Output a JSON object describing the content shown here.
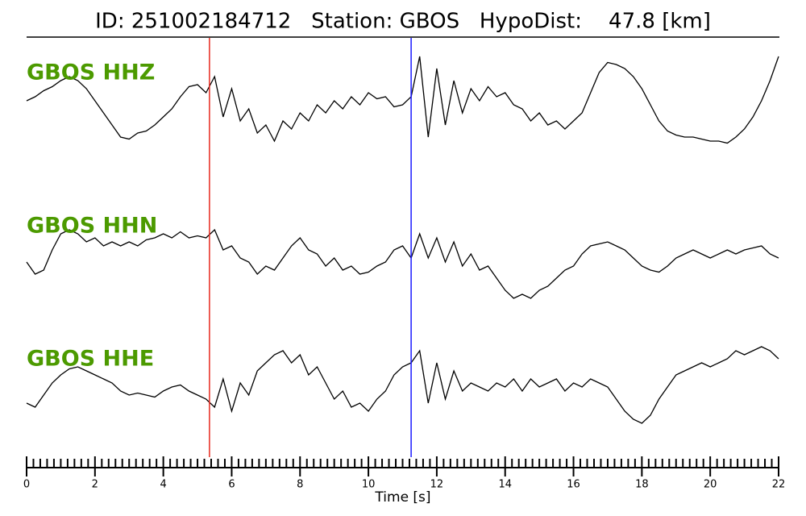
{
  "chart_data": {
    "type": "seismogram",
    "title": "ID: 251002184712   Station: GBOS   HypoDist:    47.8 [km]",
    "xlabel": "Time [s]",
    "xlim": [
      0,
      22
    ],
    "ylim": [
      -1.7,
      1.7
    ],
    "xticks": [
      0,
      2,
      4,
      6,
      8,
      10,
      12,
      14,
      16,
      18,
      20,
      22
    ],
    "xminorticks": [
      0.2,
      0.4,
      0.6,
      0.8,
      1,
      1.2,
      1.4,
      1.6,
      1.8,
      2.2,
      2.4,
      2.6,
      2.8,
      3,
      3.2,
      3.4,
      3.6,
      3.8,
      4.2,
      4.4,
      4.6,
      4.8,
      5,
      5.2,
      5.4,
      5.6,
      5.8,
      6.2,
      6.4,
      6.6,
      6.8,
      7,
      7.2,
      7.4,
      7.6,
      7.8,
      8.2,
      8.4,
      8.6,
      8.8,
      9,
      9.2,
      9.4,
      9.6,
      9.8,
      10.2,
      10.4,
      10.6,
      10.8,
      11,
      11.2,
      11.4,
      11.6,
      11.8,
      12.2,
      12.4,
      12.6,
      12.8,
      13,
      13.2,
      13.4,
      13.6,
      13.8,
      14.2,
      14.4,
      14.6,
      14.8,
      15,
      15.2,
      15.4,
      15.6,
      15.8,
      16.2,
      16.4,
      16.6,
      16.8,
      17,
      17.2,
      17.4,
      17.6,
      17.8,
      18.2,
      18.4,
      18.6,
      18.8,
      19,
      19.2,
      19.4,
      19.6,
      19.8,
      20.2,
      20.4,
      20.6,
      20.8,
      21,
      21.2,
      21.4,
      21.6,
      21.8
    ],
    "label_color": "#4c9a00",
    "picks": [
      {
        "x": 5.35,
        "color": "#e8281e"
      },
      {
        "x": 11.25,
        "color": "#1a1aff"
      }
    ],
    "x": [
      0,
      0.25,
      0.5,
      0.75,
      1,
      1.25,
      1.5,
      1.75,
      2,
      2.25,
      2.5,
      2.75,
      3,
      3.25,
      3.5,
      3.75,
      4,
      4.25,
      4.5,
      4.75,
      5,
      5.25,
      5.5,
      5.75,
      6,
      6.25,
      6.5,
      6.75,
      7,
      7.25,
      7.5,
      7.75,
      8,
      8.25,
      8.5,
      8.75,
      9,
      9.25,
      9.5,
      9.75,
      10,
      10.25,
      10.5,
      10.75,
      11,
      11.25,
      11.5,
      11.75,
      12,
      12.25,
      12.5,
      12.75,
      13,
      13.25,
      13.5,
      13.75,
      14,
      14.25,
      14.5,
      14.75,
      15,
      15.25,
      15.5,
      15.75,
      16,
      16.25,
      16.5,
      16.75,
      17,
      17.25,
      17.5,
      17.75,
      18,
      18.25,
      18.5,
      18.75,
      19,
      19.25,
      19.5,
      19.75,
      20,
      20.25,
      20.5,
      20.75,
      21,
      21.25,
      21.5,
      21.75,
      22
    ],
    "series": [
      {
        "name": "GBOS HHZ",
        "color": "#000000",
        "values": [
          0,
          0.1,
          0.25,
          0.35,
          0.5,
          0.6,
          0.5,
          0.3,
          0,
          -0.3,
          -0.6,
          -0.9,
          -0.95,
          -0.8,
          -0.75,
          -0.6,
          -0.4,
          -0.2,
          0.1,
          0.35,
          0.4,
          0.2,
          0.6,
          -0.4,
          0.3,
          -0.5,
          -0.2,
          -0.8,
          -0.6,
          -1.0,
          -0.5,
          -0.7,
          -0.3,
          -0.5,
          -0.1,
          -0.3,
          0,
          -0.2,
          0.1,
          -0.1,
          0.2,
          0.05,
          0.1,
          -0.15,
          -0.1,
          0.1,
          1.1,
          -0.9,
          0.8,
          -0.6,
          0.5,
          -0.3,
          0.3,
          0,
          0.35,
          0.1,
          0.2,
          -0.1,
          -0.2,
          -0.5,
          -0.3,
          -0.6,
          -0.5,
          -0.7,
          -0.5,
          -0.3,
          0.2,
          0.7,
          0.95,
          0.9,
          0.8,
          0.6,
          0.3,
          -0.1,
          -0.5,
          -0.75,
          -0.85,
          -0.9,
          -0.9,
          -0.95,
          -1.0,
          -1.0,
          -1.05,
          -0.9,
          -0.7,
          -0.4,
          0,
          0.5,
          1.1
        ]
      },
      {
        "name": "GBOS HHN",
        "color": "#000000",
        "values": [
          -0.2,
          -0.5,
          -0.4,
          0.1,
          0.5,
          0.6,
          0.5,
          0.3,
          0.4,
          0.2,
          0.3,
          0.2,
          0.3,
          0.2,
          0.35,
          0.4,
          0.5,
          0.4,
          0.55,
          0.4,
          0.45,
          0.4,
          0.6,
          0.1,
          0.2,
          -0.1,
          -0.2,
          -0.5,
          -0.3,
          -0.4,
          -0.1,
          0.2,
          0.4,
          0.1,
          0,
          -0.3,
          -0.1,
          -0.4,
          -0.3,
          -0.5,
          -0.45,
          -0.3,
          -0.2,
          0.1,
          0.2,
          -0.1,
          0.5,
          -0.1,
          0.4,
          -0.2,
          0.3,
          -0.3,
          0,
          -0.4,
          -0.3,
          -0.6,
          -0.9,
          -1.1,
          -1.0,
          -1.1,
          -0.9,
          -0.8,
          -0.6,
          -0.4,
          -0.3,
          0,
          0.2,
          0.25,
          0.3,
          0.2,
          0.1,
          -0.1,
          -0.3,
          -0.4,
          -0.45,
          -0.3,
          -0.1,
          0,
          0.1,
          0,
          -0.1,
          0,
          0.1,
          0,
          0.1,
          0.15,
          0.2,
          0,
          -0.1
        ]
      },
      {
        "name": "GBOS HHE",
        "color": "#000000",
        "values": [
          -0.4,
          -0.5,
          -0.2,
          0.1,
          0.3,
          0.45,
          0.5,
          0.4,
          0.3,
          0.2,
          0.1,
          -0.1,
          -0.2,
          -0.15,
          -0.2,
          -0.25,
          -0.1,
          0,
          0.05,
          -0.1,
          -0.2,
          -0.3,
          -0.5,
          0.2,
          -0.6,
          0.1,
          -0.2,
          0.4,
          0.6,
          0.8,
          0.9,
          0.6,
          0.8,
          0.3,
          0.5,
          0.1,
          -0.3,
          -0.1,
          -0.5,
          -0.4,
          -0.6,
          -0.3,
          -0.1,
          0.3,
          0.5,
          0.6,
          0.9,
          -0.4,
          0.6,
          -0.3,
          0.4,
          -0.1,
          0.1,
          0,
          -0.1,
          0.1,
          0,
          0.2,
          -0.1,
          0.2,
          0,
          0.1,
          0.2,
          -0.1,
          0.1,
          0,
          0.2,
          0.1,
          0,
          -0.3,
          -0.6,
          -0.8,
          -0.9,
          -0.7,
          -0.3,
          0,
          0.3,
          0.4,
          0.5,
          0.6,
          0.5,
          0.6,
          0.7,
          0.9,
          0.8,
          0.9,
          1.0,
          0.9,
          0.7
        ]
      }
    ]
  }
}
